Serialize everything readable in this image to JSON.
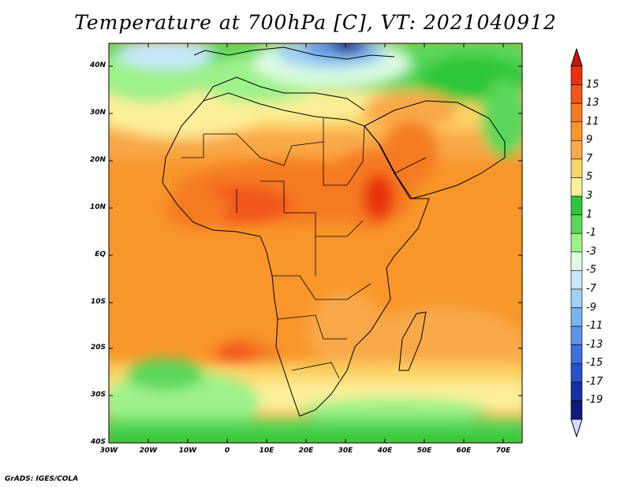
{
  "title": "Temperature at 700hPa [C], VT: 2021040912",
  "credit": "GrADS: IGES/COLA",
  "lat_labels": [
    "40N",
    "30N",
    "20N",
    "10N",
    "EQ",
    "10S",
    "20S",
    "30S",
    "40S"
  ],
  "lon_labels": [
    "30W",
    "20W",
    "10W",
    "0",
    "10E",
    "20E",
    "30E",
    "40E",
    "50E",
    "60E",
    "70E"
  ],
  "colorbar": {
    "levels": [
      "15",
      "13",
      "11",
      "9",
      "7",
      "5",
      "3",
      "1",
      "-1",
      "-3",
      "-5",
      "-7",
      "-9",
      "-11",
      "-13",
      "-15",
      "-17",
      "-19"
    ],
    "colors": [
      "#e8320d",
      "#f2561b",
      "#f57a22",
      "#f8962a",
      "#f9a94a",
      "#fcd366",
      "#fcef9a",
      "#2fc63b",
      "#5ad75a",
      "#9df28a",
      "#dcfbe0",
      "#c7e7fb",
      "#9fd0f5",
      "#7ab3ee",
      "#5c94e6",
      "#3f6fdc",
      "#2951c8",
      "#1530a6",
      "#101b7a"
    ],
    "top_cap_color": "#c61a08",
    "bottom_cap_color": "#d7dcff"
  }
}
